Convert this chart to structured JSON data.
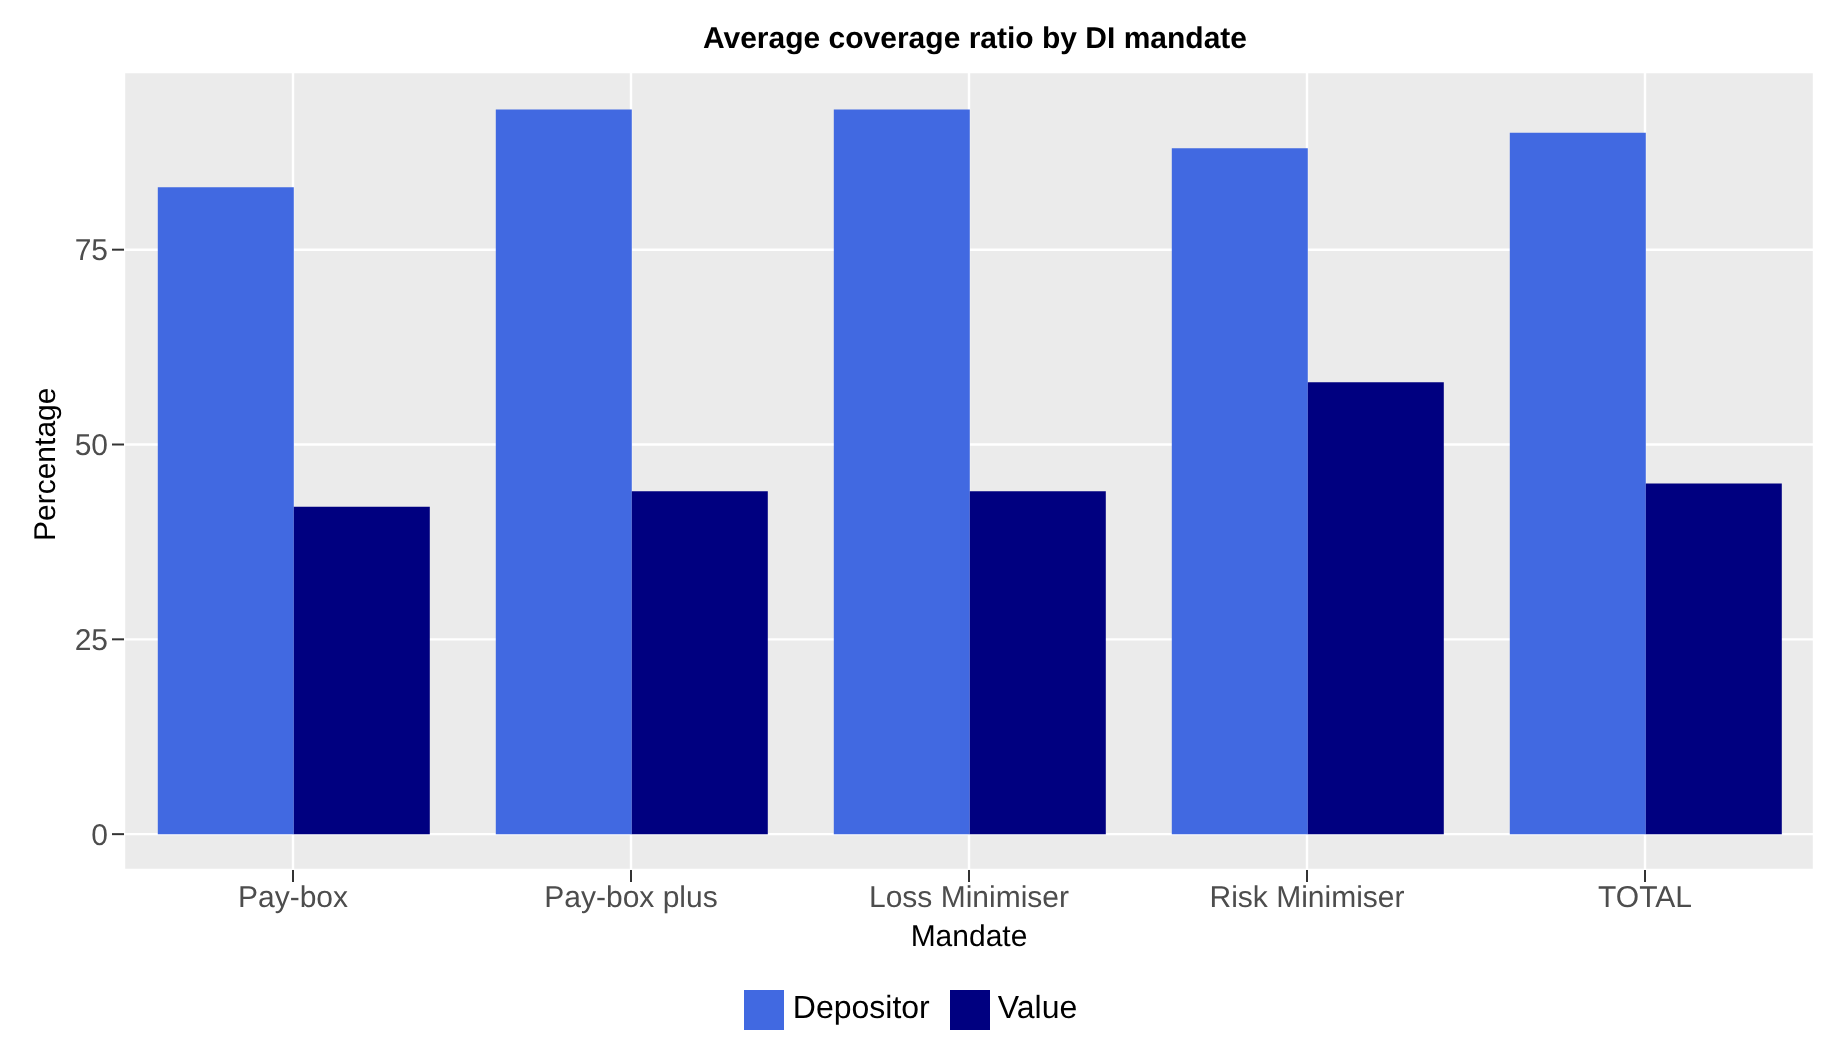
{
  "chart_data": {
    "type": "bar",
    "title": "Average coverage ratio by DI mandate",
    "xlabel": "Mandate",
    "ylabel": "Percentage",
    "categories": [
      "Pay-box",
      "Pay-box plus",
      "Loss Minimiser",
      "Risk Minimiser",
      "TOTAL"
    ],
    "series": [
      {
        "name": "Depositor",
        "color": "#4169e1",
        "values": [
          83,
          93,
          93,
          88,
          90
        ]
      },
      {
        "name": "Value",
        "color": "#000080",
        "values": [
          42,
          44,
          44,
          58,
          45
        ]
      }
    ],
    "ylim": [
      -4.6,
      97.8
    ],
    "yticks": [
      0,
      25,
      50,
      75
    ],
    "grid": true,
    "legend": "bottom"
  }
}
